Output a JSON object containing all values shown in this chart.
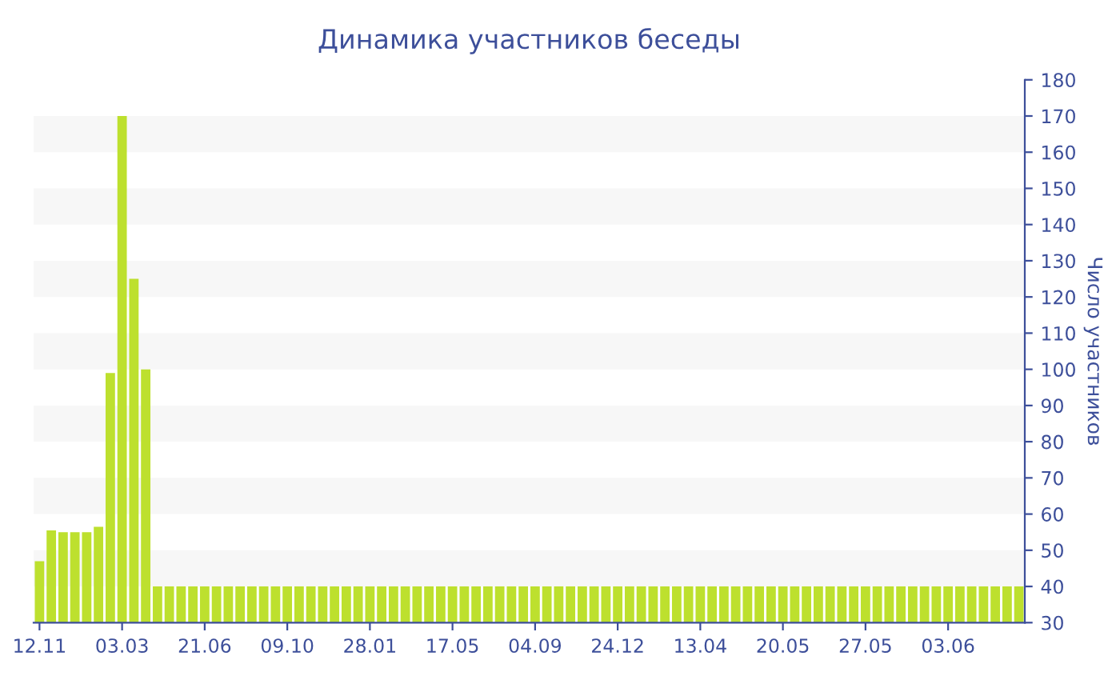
{
  "chart_data": {
    "type": "bar",
    "title": "Динамика участников беседы",
    "ylabel": "Число участников",
    "categories": [
      "12.11",
      null,
      null,
      null,
      null,
      null,
      null,
      "03.03",
      null,
      null,
      null,
      null,
      null,
      null,
      "21.06",
      null,
      null,
      null,
      null,
      null,
      null,
      "09.10",
      null,
      null,
      null,
      null,
      null,
      null,
      "28.01",
      null,
      null,
      null,
      null,
      null,
      null,
      "17.05",
      null,
      null,
      null,
      null,
      null,
      null,
      "04.09",
      null,
      null,
      null,
      null,
      null,
      null,
      "24.12",
      null,
      null,
      null,
      null,
      null,
      null,
      "13.04",
      null,
      null,
      null,
      null,
      null,
      null,
      "20.05",
      null,
      null,
      null,
      null,
      null,
      null,
      "27.05",
      null,
      null,
      null,
      null,
      null,
      null,
      "03.06",
      null,
      null,
      null,
      null,
      null,
      null
    ],
    "values": [
      47,
      55.5,
      55,
      55,
      55,
      56.5,
      99,
      170,
      125,
      100,
      40,
      40,
      40,
      40,
      40,
      40,
      40,
      40,
      40,
      40,
      40,
      40,
      40,
      40,
      40,
      40,
      40,
      40,
      40,
      40,
      40,
      40,
      40,
      40,
      40,
      40,
      40,
      40,
      40,
      40,
      40,
      40,
      40,
      40,
      40,
      40,
      40,
      40,
      40,
      40,
      40,
      40,
      40,
      40,
      40,
      40,
      40,
      40,
      40,
      40,
      40,
      40,
      40,
      40,
      40,
      40,
      40,
      40,
      40,
      40,
      40,
      40,
      40,
      40,
      40,
      40,
      40,
      40,
      40,
      40,
      40,
      40,
      40,
      40
    ],
    "color": "#bde02e",
    "ylim": [
      30,
      180
    ],
    "yticks": [
      30,
      40,
      50,
      60,
      70,
      80,
      90,
      100,
      110,
      120,
      130,
      140,
      150,
      160,
      170,
      180
    ],
    "bands": [
      {
        "axis": "y",
        "from": 40,
        "to": 50,
        "color": "#f7f7f7"
      },
      {
        "axis": "y",
        "from": 60,
        "to": 70,
        "color": "#f7f7f7"
      },
      {
        "axis": "y",
        "from": 80,
        "to": 90,
        "color": "#f7f7f7"
      },
      {
        "axis": "y",
        "from": 100,
        "to": 110,
        "color": "#f7f7f7"
      },
      {
        "axis": "y",
        "from": 120,
        "to": 130,
        "color": "#f7f7f7"
      },
      {
        "axis": "y",
        "from": 140,
        "to": 150,
        "color": "#f7f7f7"
      },
      {
        "axis": "y",
        "from": 160,
        "to": 170,
        "color": "#f7f7f7"
      }
    ],
    "legend": false
  }
}
